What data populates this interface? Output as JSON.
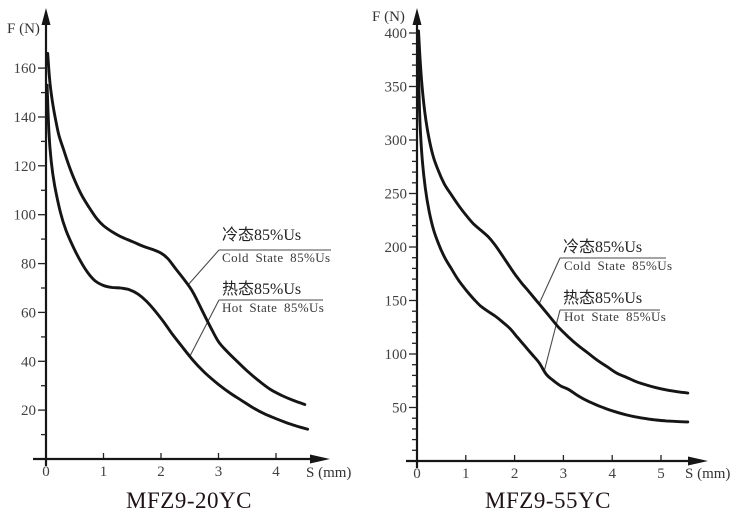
{
  "page": {
    "background": "#ffffff"
  },
  "colors": {
    "curve": "#151515",
    "axis": "#161616",
    "tick_label": "#414141",
    "legend_text": "#3a3a3a",
    "title_text": "#1d1215",
    "callout_line": "#4a4a4a"
  },
  "chart_data": [
    {
      "type": "line",
      "title": "MFZ9-20YC",
      "xlabel": "S (mm)",
      "ylabel": "F (N)",
      "xlim": [
        0,
        4.9
      ],
      "ylim": [
        0,
        180
      ],
      "xticks": [
        0,
        1,
        2,
        3,
        4
      ],
      "yticks": [
        20,
        40,
        60,
        80,
        100,
        120,
        140,
        160
      ],
      "y_minor_step": 10,
      "y_minor_max": 160,
      "grid": false,
      "legend_position": "inside-right-callouts",
      "series": [
        {
          "name": "cold-state-85pct-us",
          "label_cn": "冷态85%Us",
          "label_en": "Cold State 85%Us",
          "points": [
            [
              0.03,
              166
            ],
            [
              0.06,
              156
            ],
            [
              0.1,
              148
            ],
            [
              0.15,
              141
            ],
            [
              0.22,
              133
            ],
            [
              0.3,
              127
            ],
            [
              0.4,
              120
            ],
            [
              0.5,
              114
            ],
            [
              0.62,
              108
            ],
            [
              0.75,
              103
            ],
            [
              0.88,
              98.5
            ],
            [
              1.0,
              95.5
            ],
            [
              1.15,
              93
            ],
            [
              1.3,
              91
            ],
            [
              1.5,
              89
            ],
            [
              1.7,
              87
            ],
            [
              1.85,
              85.8
            ],
            [
              2.0,
              84.3
            ],
            [
              2.12,
              82
            ],
            [
              2.25,
              78
            ],
            [
              2.4,
              73.5
            ],
            [
              2.55,
              68.5
            ],
            [
              2.7,
              61.5
            ],
            [
              2.85,
              54.5
            ],
            [
              3.0,
              48
            ],
            [
              3.15,
              44
            ],
            [
              3.3,
              40.5
            ],
            [
              3.5,
              36
            ],
            [
              3.7,
              32
            ],
            [
              3.9,
              28.5
            ],
            [
              4.1,
              26
            ],
            [
              4.3,
              24
            ],
            [
              4.5,
              22.3
            ]
          ]
        },
        {
          "name": "hot-state-85pct-us",
          "label_cn": "热态85%Us",
          "label_en": "Hot State 85%Us",
          "points": [
            [
              0.02,
              153
            ],
            [
              0.05,
              134
            ],
            [
              0.09,
              122
            ],
            [
              0.15,
              112
            ],
            [
              0.25,
              101
            ],
            [
              0.35,
              93.5
            ],
            [
              0.48,
              86.5
            ],
            [
              0.6,
              81
            ],
            [
              0.72,
              76.5
            ],
            [
              0.85,
              73
            ],
            [
              1.0,
              71
            ],
            [
              1.15,
              70.2
            ],
            [
              1.3,
              70
            ],
            [
              1.45,
              69.3
            ],
            [
              1.6,
              67.5
            ],
            [
              1.75,
              64.5
            ],
            [
              1.9,
              60.5
            ],
            [
              2.05,
              56
            ],
            [
              2.2,
              51
            ],
            [
              2.35,
              46.5
            ],
            [
              2.5,
              42
            ],
            [
              2.65,
              38
            ],
            [
              2.8,
              34.5
            ],
            [
              3.0,
              30.5
            ],
            [
              3.2,
              27
            ],
            [
              3.4,
              24
            ],
            [
              3.6,
              21
            ],
            [
              3.8,
              18.5
            ],
            [
              4.0,
              16.5
            ],
            [
              4.2,
              14.7
            ],
            [
              4.4,
              13.2
            ],
            [
              4.55,
              12.2
            ]
          ]
        }
      ]
    },
    {
      "type": "line",
      "title": "MFZ9-55YC",
      "xlabel": "S (mm)",
      "ylabel": "F (N)",
      "xlim": [
        0,
        6
      ],
      "ylim": [
        0,
        420
      ],
      "xticks": [
        0,
        1,
        2,
        3,
        4,
        5
      ],
      "yticks": [
        50,
        100,
        150,
        200,
        250,
        300,
        350,
        400
      ],
      "y_minor_step": 10,
      "y_minor_max": 400,
      "grid": false,
      "legend_position": "inside-right-callouts",
      "series": [
        {
          "name": "cold-state-85pct-us",
          "label_cn": "冷态85%Us",
          "label_en": "Cold State 85%Us",
          "points": [
            [
              0.03,
              402
            ],
            [
              0.06,
              378
            ],
            [
              0.1,
              352
            ],
            [
              0.16,
              326
            ],
            [
              0.24,
              303
            ],
            [
              0.33,
              285
            ],
            [
              0.44,
              271
            ],
            [
              0.56,
              259
            ],
            [
              0.7,
              249
            ],
            [
              0.85,
              239
            ],
            [
              1.0,
              230
            ],
            [
              1.15,
              222
            ],
            [
              1.3,
              216
            ],
            [
              1.45,
              210
            ],
            [
              1.58,
              203
            ],
            [
              1.72,
              194
            ],
            [
              1.85,
              185
            ],
            [
              2.0,
              175
            ],
            [
              2.15,
              166
            ],
            [
              2.3,
              158
            ],
            [
              2.5,
              147
            ],
            [
              2.7,
              136
            ],
            [
              2.9,
              125
            ],
            [
              3.1,
              116
            ],
            [
              3.3,
              108
            ],
            [
              3.5,
              101
            ],
            [
              3.7,
              94
            ],
            [
              3.9,
              88
            ],
            [
              4.1,
              82
            ],
            [
              4.3,
              78
            ],
            [
              4.5,
              74
            ],
            [
              4.7,
              71
            ],
            [
              4.9,
              68.5
            ],
            [
              5.1,
              66.5
            ],
            [
              5.3,
              65
            ],
            [
              5.55,
              63.5
            ]
          ]
        },
        {
          "name": "hot-state-85pct-us",
          "label_cn": "热态85%Us",
          "label_en": "Hot State 85%Us",
          "points": [
            [
              0.02,
              392
            ],
            [
              0.04,
              345
            ],
            [
              0.07,
              308
            ],
            [
              0.11,
              280
            ],
            [
              0.17,
              255
            ],
            [
              0.25,
              233
            ],
            [
              0.34,
              216
            ],
            [
              0.45,
              202
            ],
            [
              0.57,
              190
            ],
            [
              0.7,
              180
            ],
            [
              0.85,
              169
            ],
            [
              1.0,
              160
            ],
            [
              1.15,
              152
            ],
            [
              1.3,
              145
            ],
            [
              1.45,
              140
            ],
            [
              1.6,
              135.5
            ],
            [
              1.75,
              130
            ],
            [
              1.9,
              124
            ],
            [
              2.05,
              116
            ],
            [
              2.2,
              108
            ],
            [
              2.35,
              100
            ],
            [
              2.5,
              92
            ],
            [
              2.65,
              81
            ],
            [
              2.8,
              75
            ],
            [
              2.95,
              70
            ],
            [
              3.1,
              67
            ],
            [
              3.3,
              61
            ],
            [
              3.5,
              56
            ],
            [
              3.7,
              52
            ],
            [
              3.9,
              48.5
            ],
            [
              4.1,
              45.5
            ],
            [
              4.3,
              43
            ],
            [
              4.5,
              41
            ],
            [
              4.7,
              39.5
            ],
            [
              4.9,
              38.3
            ],
            [
              5.1,
              37.5
            ],
            [
              5.3,
              37
            ],
            [
              5.55,
              36.5
            ]
          ]
        }
      ]
    }
  ]
}
